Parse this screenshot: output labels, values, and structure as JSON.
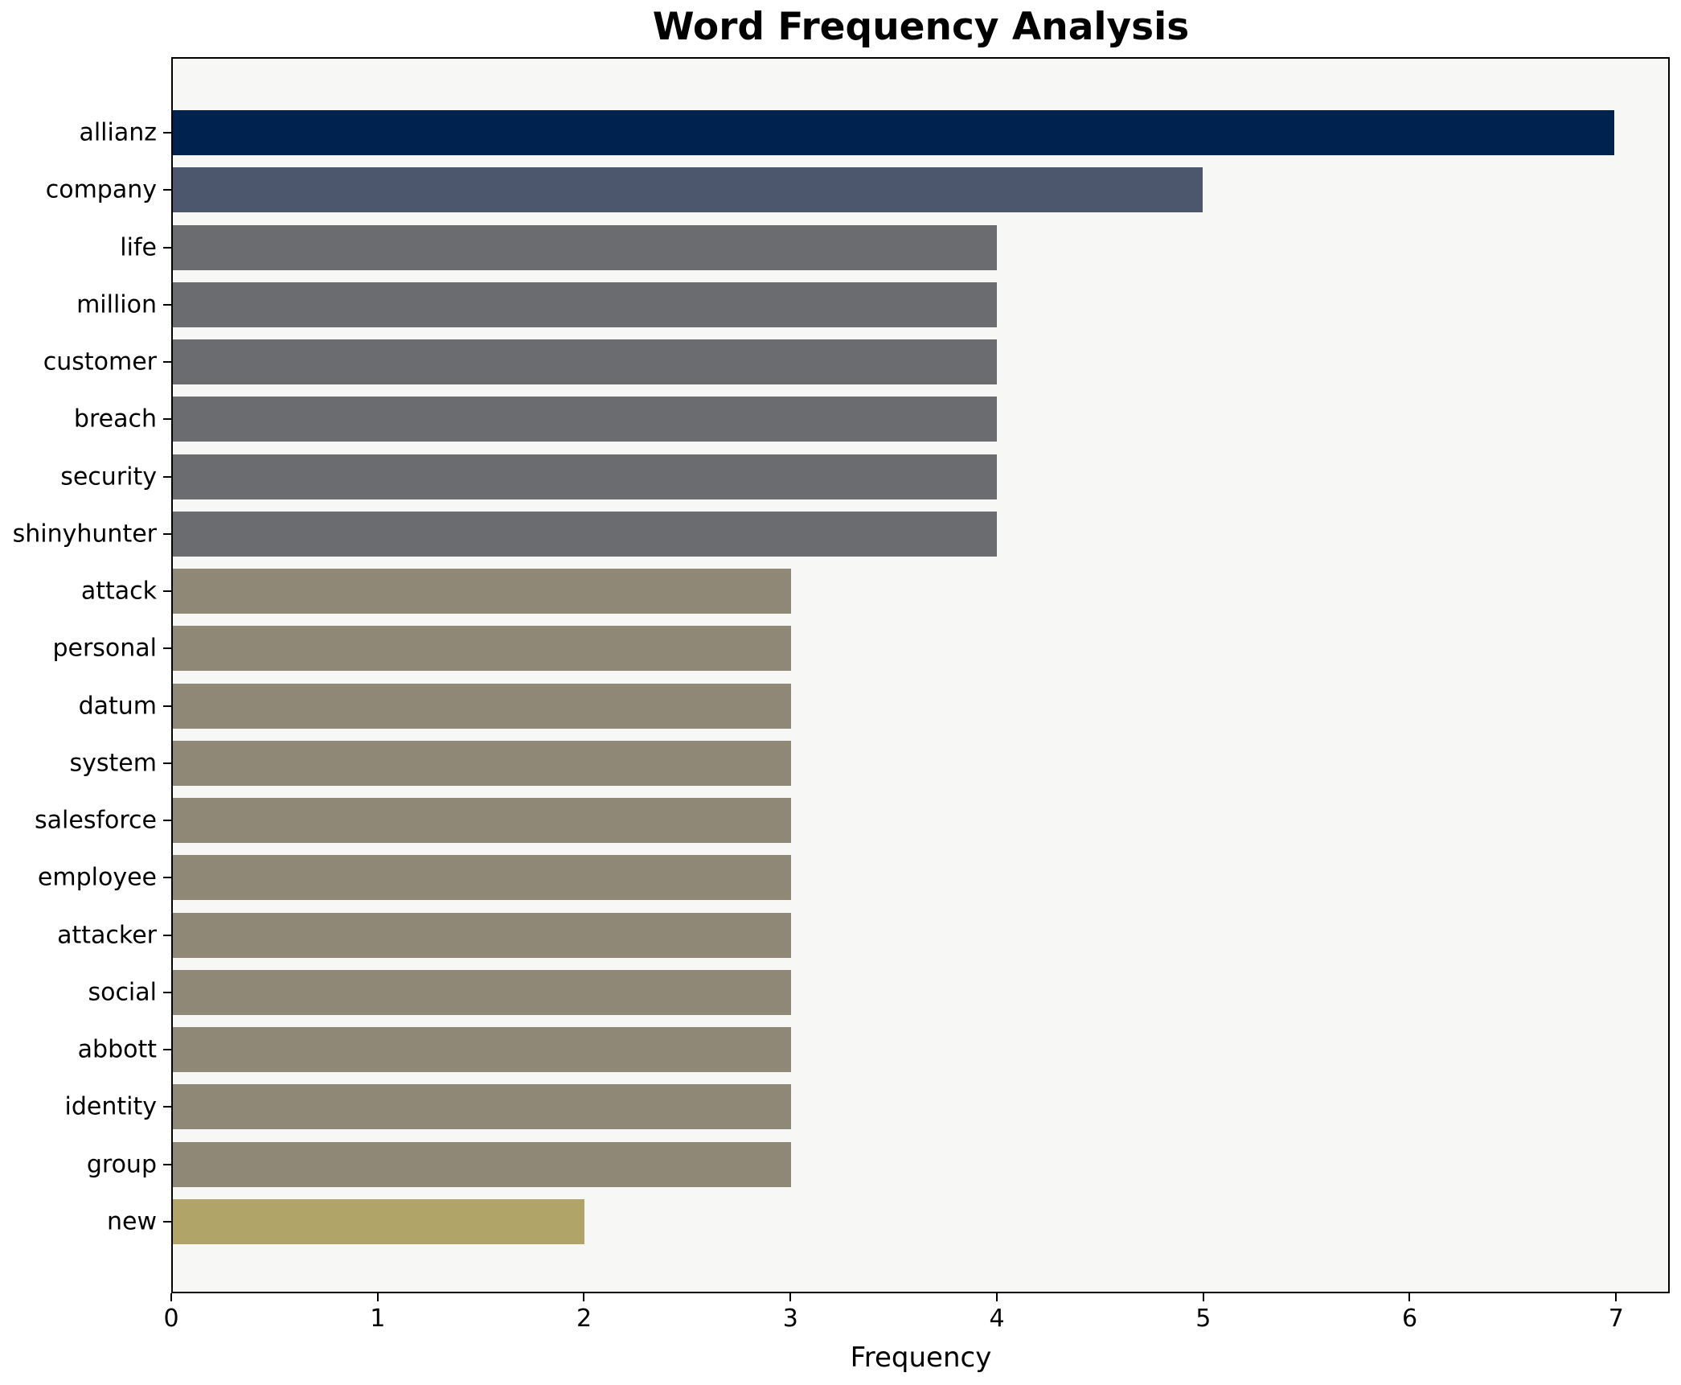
{
  "chart_data": {
    "type": "bar",
    "orientation": "horizontal",
    "title": "Word Frequency Analysis",
    "xlabel": "Frequency",
    "ylabel": "",
    "categories": [
      "allianz",
      "company",
      "life",
      "million",
      "customer",
      "breach",
      "security",
      "shinyhunter",
      "attack",
      "personal",
      "datum",
      "system",
      "salesforce",
      "employee",
      "attacker",
      "social",
      "abbott",
      "identity",
      "group",
      "new"
    ],
    "values": [
      7,
      5,
      4,
      4,
      4,
      4,
      4,
      4,
      3,
      3,
      3,
      3,
      3,
      3,
      3,
      3,
      3,
      3,
      3,
      2
    ],
    "bar_colors": [
      "#00224e",
      "#4c566c",
      "#6b6c70",
      "#6b6c70",
      "#6b6c70",
      "#6b6c70",
      "#6b6c70",
      "#6b6c70",
      "#8f8877",
      "#8f8877",
      "#8f8877",
      "#8f8877",
      "#8f8877",
      "#8f8877",
      "#8f8877",
      "#8f8877",
      "#8f8877",
      "#8f8877",
      "#8f8877",
      "#b0a469"
    ],
    "x_ticks": [
      0,
      1,
      2,
      3,
      4,
      5,
      6,
      7
    ],
    "xlim": [
      0,
      7.26
    ],
    "grid": "off",
    "legend": "none",
    "plot_background": "#f7f7f6",
    "figure_background": "#ffffff",
    "axis_color": "#000000"
  }
}
